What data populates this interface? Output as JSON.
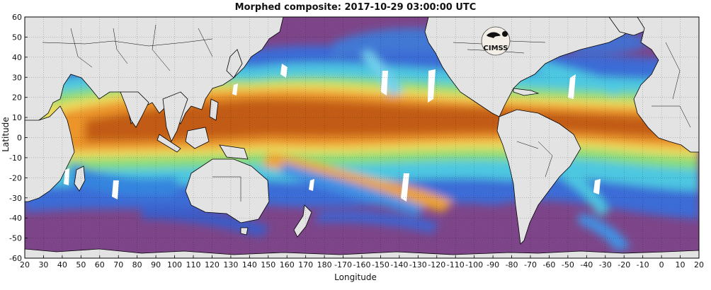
{
  "title": "Morphed composite: 2017-10-29 03:00:00 UTC",
  "xlabel": "Longitude",
  "ylabel": "Latitude",
  "x_ticks": [
    "20",
    "30",
    "40",
    "50",
    "60",
    "70",
    "80",
    "90",
    "100",
    "110",
    "120",
    "130",
    "140",
    "150",
    "160",
    "170",
    "180",
    "-170",
    "-160",
    "-150",
    "-140",
    "-130",
    "-120",
    "-110",
    "-100",
    "-90",
    "-80",
    "-70",
    "-60",
    "-50",
    "-40",
    "-30",
    "-20",
    "-10",
    "0",
    "10",
    "20"
  ],
  "y_ticks": [
    "60",
    "50",
    "40",
    "30",
    "20",
    "10",
    "0",
    "-10",
    "-20",
    "-30",
    "-40",
    "-50",
    "-60"
  ],
  "logo_text": "CIMSS",
  "colors": {
    "land": "#e3e3e3",
    "dry_purple": "#7a3f86",
    "mid_blue": "#2a6fe0",
    "cyan": "#49d1e8",
    "green": "#7fe07a",
    "yellow": "#f2e35a",
    "orange": "#f09a25",
    "deep_orange": "#c65a0c",
    "coast": "#000000"
  },
  "chart_data": {
    "type": "heatmap",
    "title": "Morphed composite: 2017-10-29 03:00:00 UTC",
    "xlabel": "Longitude",
    "ylabel": "Latitude",
    "xlim": [
      20,
      380
    ],
    "ylim": [
      -60,
      60
    ],
    "grid": true,
    "x_tick_labels": [
      "20",
      "30",
      "40",
      "50",
      "60",
      "70",
      "80",
      "90",
      "100",
      "110",
      "120",
      "130",
      "140",
      "150",
      "160",
      "170",
      "180",
      "-170",
      "-160",
      "-150",
      "-140",
      "-130",
      "-120",
      "-110",
      "-100",
      "-90",
      "-80",
      "-70",
      "-60",
      "-50",
      "-40",
      "-30",
      "-20",
      "-10",
      "0",
      "10",
      "20"
    ],
    "y_tick_labels": [
      "60",
      "50",
      "40",
      "30",
      "20",
      "10",
      "0",
      "-10",
      "-20",
      "-30",
      "-40",
      "-50",
      "-60"
    ]
  }
}
